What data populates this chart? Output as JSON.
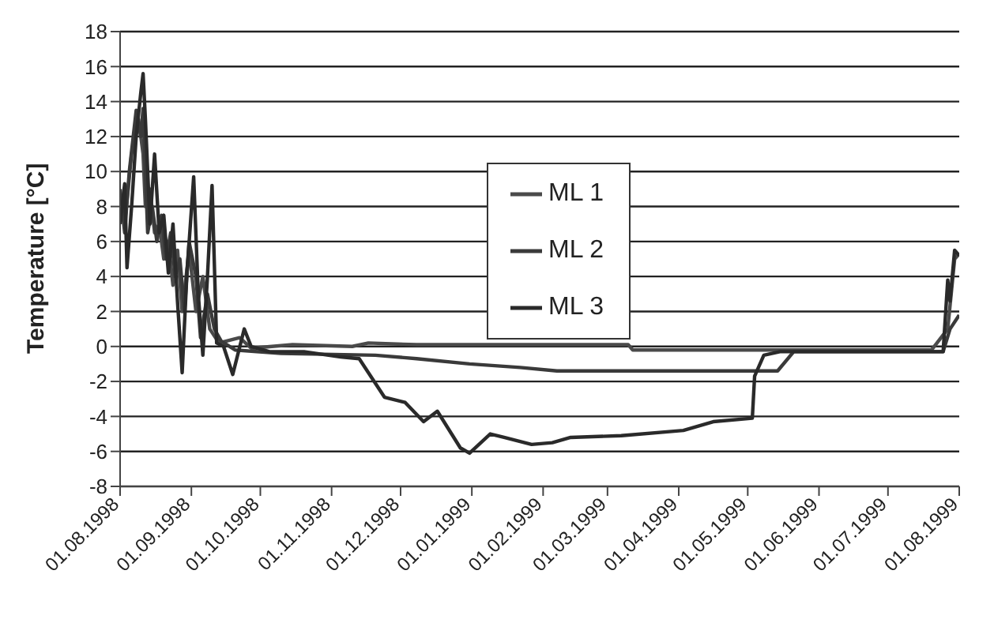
{
  "chart_data": {
    "type": "line",
    "ylabel": "Temperature [°C]",
    "xlim": [
      "1998-08-01",
      "1999-08-01"
    ],
    "xticks": [
      {
        "value": "1998-08-01",
        "label": "01.08.1998"
      },
      {
        "value": "1998-09-01",
        "label": "01.09.1998"
      },
      {
        "value": "1998-10-01",
        "label": "01.10.1998"
      },
      {
        "value": "1998-11-01",
        "label": "01.11.1998"
      },
      {
        "value": "1998-12-01",
        "label": "01.12.1998"
      },
      {
        "value": "1999-01-01",
        "label": "01.01.1999"
      },
      {
        "value": "1999-02-01",
        "label": "01.02.1999"
      },
      {
        "value": "1999-03-01",
        "label": "01.03.1999"
      },
      {
        "value": "1999-04-01",
        "label": "01.04.1999"
      },
      {
        "value": "1999-05-01",
        "label": "01.05.1999"
      },
      {
        "value": "1999-06-01",
        "label": "01.06.1999"
      },
      {
        "value": "1999-07-01",
        "label": "01.07.1999"
      },
      {
        "value": "1999-08-01",
        "label": "01.08.1999"
      }
    ],
    "ylim": [
      -8,
      18
    ],
    "yticks": [
      -8,
      -6,
      -4,
      -2,
      0,
      2,
      4,
      6,
      8,
      10,
      12,
      14,
      16,
      18
    ],
    "grid": "y",
    "legend": "top",
    "marker": "none",
    "line_style": "solid",
    "series": [
      {
        "name": "ML 1",
        "color": "#4a4a4a",
        "x": [
          "1998-08-01",
          "1998-08-03",
          "1998-08-06",
          "1998-08-09",
          "1998-08-11",
          "1998-08-12",
          "1998-08-14",
          "1998-08-16",
          "1998-08-18",
          "1998-08-20",
          "1998-08-22",
          "1998-08-24",
          "1998-08-26",
          "1998-08-28",
          "1998-08-31",
          "1998-09-03",
          "1998-09-06",
          "1998-09-09",
          "1998-09-13",
          "1998-09-22",
          "1998-09-27",
          "1998-10-15",
          "1998-11-10",
          "1998-11-17",
          "1998-12-08",
          "1999-01-25",
          "1999-03-10",
          "1999-03-12",
          "1999-07-20",
          "1999-07-27",
          "1999-07-30",
          "1999-08-01"
        ],
        "values": [
          8,
          7,
          11,
          13,
          11,
          8,
          9,
          6.5,
          7,
          5,
          6,
          3.5,
          5.5,
          2,
          5.5,
          2,
          4,
          1,
          0.2,
          0.5,
          -0.1,
          0.1,
          0,
          0.2,
          0.1,
          0.1,
          0.1,
          -0.2,
          -0.2,
          1,
          5,
          5.3
        ]
      },
      {
        "name": "ML 2",
        "color": "#3a3a3a",
        "x": [
          "1998-08-01",
          "1998-08-03",
          "1998-08-05",
          "1998-08-08",
          "1998-08-10",
          "1998-08-11",
          "1998-08-13",
          "1998-08-15",
          "1998-08-17",
          "1998-08-19",
          "1998-08-21",
          "1998-08-23",
          "1998-08-25",
          "1998-08-27",
          "1998-08-29",
          "1998-08-31",
          "1998-09-03",
          "1998-09-05",
          "1998-09-08",
          "1998-09-11",
          "1998-09-14",
          "1998-09-20",
          "1998-10-10",
          "1998-11-20",
          "1998-12-08",
          "1998-12-31",
          "1999-01-22",
          "1999-02-07",
          "1999-05-14",
          "1999-05-21",
          "1999-07-25",
          "1999-07-28",
          "1999-08-01"
        ],
        "values": [
          9,
          6.5,
          10,
          13.5,
          12,
          13.6,
          6.5,
          8,
          6,
          7.5,
          5,
          6.5,
          4,
          5,
          2,
          6,
          4,
          0.5,
          3,
          1,
          0.3,
          -0.2,
          -0.4,
          -0.5,
          -0.7,
          -1,
          -1.2,
          -1.4,
          -1.4,
          -0.3,
          -0.3,
          1,
          1.8
        ]
      },
      {
        "name": "ML 3",
        "color": "#2a2a2a",
        "x": [
          "1998-08-01",
          "1998-08-03",
          "1998-08-04",
          "1998-08-06",
          "1998-08-08",
          "1998-08-10",
          "1998-08-11",
          "1998-08-12",
          "1998-08-14",
          "1998-08-16",
          "1998-08-18",
          "1998-08-20",
          "1998-08-22",
          "1998-08-24",
          "1998-08-26",
          "1998-08-28",
          "1998-08-30",
          "1998-09-02",
          "1998-09-04",
          "1998-09-06",
          "1998-09-08",
          "1998-09-10",
          "1998-09-12",
          "1998-09-15",
          "1998-09-19",
          "1998-09-24",
          "1998-09-27",
          "1998-10-05",
          "1998-10-20",
          "1998-11-05",
          "1998-11-13",
          "1998-11-24",
          "1998-12-03",
          "1998-12-11",
          "1998-12-17",
          "1998-12-27",
          "1998-12-31",
          "1999-01-09",
          "1999-01-15",
          "1999-01-27",
          "1999-02-05",
          "1999-02-13",
          "1999-03-07",
          "1999-04-03",
          "1999-04-16",
          "1999-05-03",
          "1999-05-04",
          "1999-05-08",
          "1999-05-15",
          "1999-07-25",
          "1999-07-27",
          "1999-07-28",
          "1999-07-30",
          "1999-08-01"
        ],
        "values": [
          7,
          9.3,
          4.5,
          8,
          12,
          14.5,
          15.6,
          13,
          7,
          11,
          6.5,
          7.5,
          4.2,
          7,
          2.5,
          -1.5,
          4,
          9.7,
          3,
          -0.5,
          4,
          9.2,
          0.2,
          0,
          -1.6,
          1,
          0,
          -0.3,
          -0.3,
          -0.6,
          -0.7,
          -2.9,
          -3.2,
          -4.3,
          -3.7,
          -5.8,
          -6.1,
          -5,
          -5.2,
          -5.6,
          -5.5,
          -5.2,
          -5.1,
          -4.8,
          -4.3,
          -4.1,
          -1.7,
          -0.5,
          -0.3,
          -0.3,
          3.8,
          2.6,
          5.5,
          5.2
        ]
      }
    ]
  }
}
